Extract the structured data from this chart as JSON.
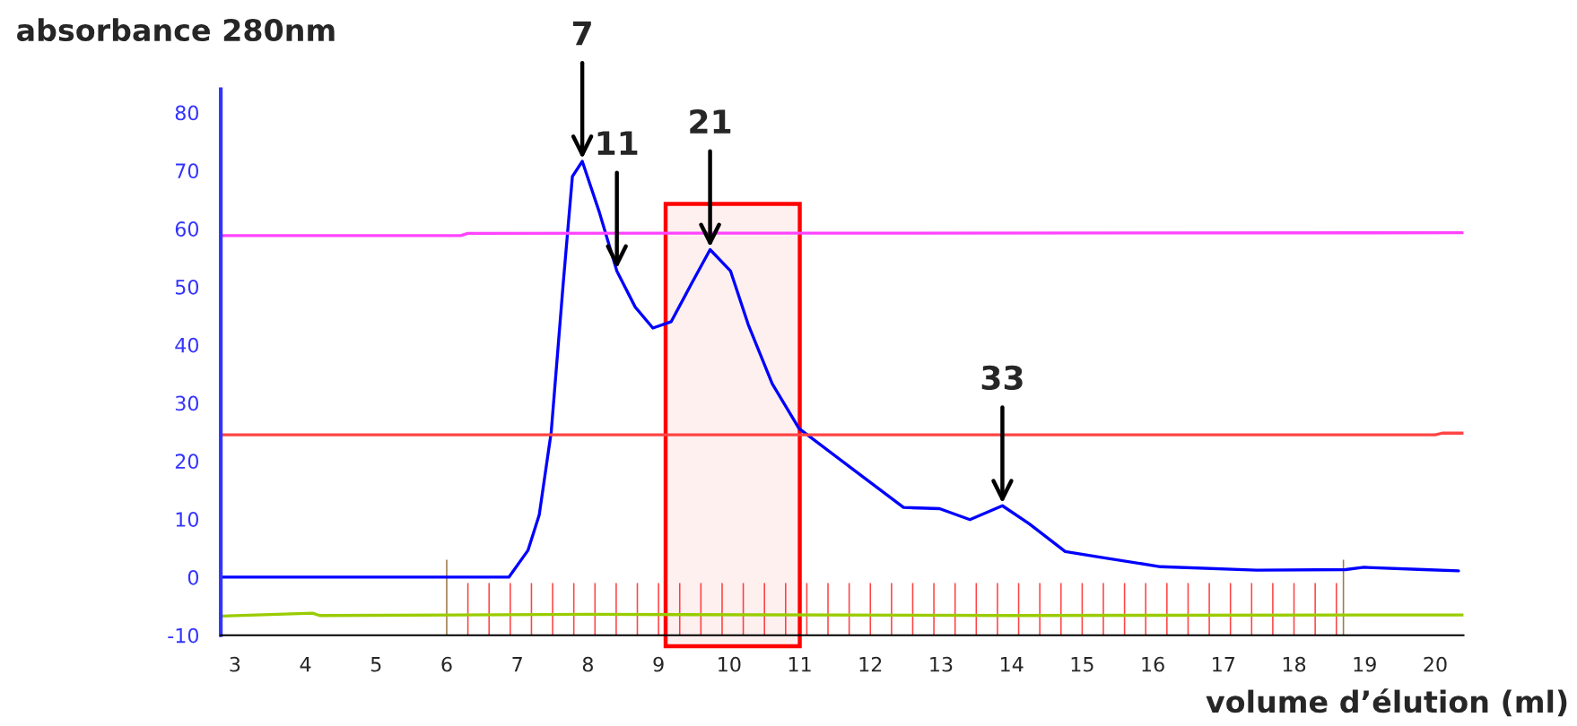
{
  "chart_data": {
    "type": "line",
    "xlabel": "volume d’élution (ml)",
    "ylabel": "absorbance 280nm",
    "xlim": [
      2.8,
      20.4
    ],
    "xticks": [
      3,
      4,
      5,
      6,
      7,
      8,
      9,
      10,
      11,
      12,
      13,
      14,
      15,
      16,
      17,
      18,
      19,
      20
    ],
    "ylim": [
      -10,
      84
    ],
    "yticks": [
      -10,
      0,
      10,
      20,
      30,
      40,
      50,
      60,
      70,
      80
    ],
    "grid": false,
    "legend": false,
    "marker": "none",
    "line_style": "solid",
    "series": [
      {
        "color": "#0000ff",
        "x": [
          2.8,
          6.88,
          7.15,
          7.31,
          7.48,
          7.65,
          7.78,
          7.92,
          8.16,
          8.41,
          8.67,
          8.92,
          9.18,
          9.47,
          9.73,
          10.02,
          10.27,
          10.61,
          10.99,
          11.88,
          12.47,
          12.98,
          13.41,
          13.87,
          14.25,
          14.76,
          15.27,
          16.11,
          17.47,
          18.73,
          18.99,
          19.84,
          20.33
        ],
        "values": [
          0,
          0,
          4.6,
          10.7,
          25,
          50.6,
          69,
          71.6,
          62.9,
          52.7,
          46.5,
          42.9,
          44,
          50.6,
          56.4,
          52.7,
          43.5,
          33.3,
          25.6,
          17.4,
          12,
          11.8,
          9.9,
          12.3,
          9.2,
          4.4,
          3.4,
          1.8,
          1.2,
          1.3,
          1.7,
          1.3,
          1.1
        ]
      },
      {
        "color": "#ff44ff",
        "x": [
          2.8,
          6.2,
          6.3,
          20.4
        ],
        "values": [
          58.8,
          58.8,
          59.2,
          59.3
        ]
      },
      {
        "color": "#ff4444",
        "x": [
          2.8,
          20.0,
          20.1,
          20.4
        ],
        "values": [
          24.5,
          24.5,
          24.8,
          24.8
        ]
      },
      {
        "color": "#99cc00",
        "x": [
          2.8,
          4.1,
          4.2,
          8.0,
          14.0,
          20.4
        ],
        "values": [
          -6.7,
          -6.2,
          -6.6,
          -6.4,
          -6.6,
          -6.5
        ]
      },
      {
        "type": "bar",
        "color": "#ff4444",
        "x": [
          6.3,
          6.6,
          6.9,
          7.2,
          7.5,
          7.8,
          8.1,
          8.4,
          8.7,
          9.0,
          9.3,
          9.6,
          9.9,
          10.2,
          10.5,
          10.8,
          11.1,
          11.4,
          11.7,
          12.0,
          12.3,
          12.6,
          12.9,
          13.2,
          13.5,
          13.8,
          14.1,
          14.4,
          14.7,
          15.0,
          15.3,
          15.6,
          15.9,
          16.2,
          16.5,
          16.8,
          17.1,
          17.4,
          17.7,
          18.0,
          18.3,
          18.6
        ],
        "base": [
          -10,
          -10,
          -10,
          -10,
          -10,
          -10,
          -10,
          -10,
          -10,
          -10,
          -10,
          -10,
          -10,
          -10,
          -10,
          -10,
          -10,
          -10,
          -10,
          -10,
          -10,
          -10,
          -10,
          -10,
          -10,
          -10,
          -10,
          -10,
          -10,
          -10,
          -10,
          -10,
          -10,
          -10,
          -10,
          -10,
          -10,
          -10,
          -10,
          -10,
          -10,
          -10
        ],
        "values": [
          9,
          9,
          9,
          9,
          9,
          9,
          9,
          9,
          9,
          9,
          9,
          9,
          9,
          9,
          9,
          9,
          9,
          9,
          9,
          9,
          9,
          9,
          9,
          9,
          9,
          9,
          9,
          9,
          9,
          9,
          9,
          9,
          9,
          9,
          9,
          9,
          9,
          9,
          9,
          9,
          9,
          9
        ]
      },
      {
        "type": "bar",
        "color": "#a0784a",
        "x": [
          6.0,
          18.7
        ],
        "base": [
          -10,
          -10
        ],
        "values": [
          13,
          13
        ]
      }
    ],
    "bands": [
      {
        "axis": "x",
        "from": 9.1,
        "to": 11.0,
        "color": "#ff0000"
      }
    ],
    "annotations": [
      {
        "text": "7",
        "x": 7.92,
        "y": 71.6
      },
      {
        "text": "11",
        "x": 8.41,
        "y": 52.7
      },
      {
        "text": "21",
        "x": 9.73,
        "y": 56.4
      },
      {
        "text": "33",
        "x": 13.87,
        "y": 12.3
      }
    ]
  }
}
